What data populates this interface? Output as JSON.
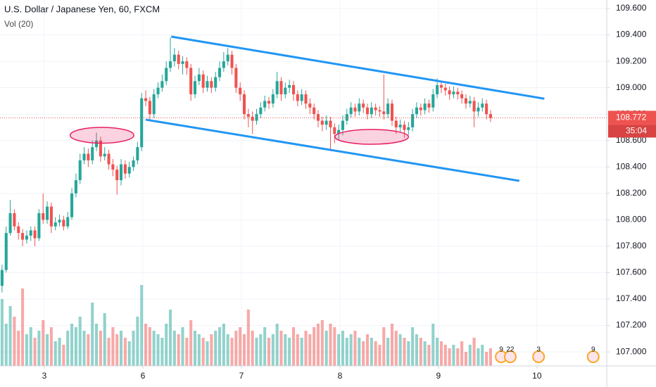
{
  "chart_data": {
    "type": "candlestick",
    "title": "U.S. Dollar / Japanese Yen, 60, FXCM",
    "subtitle": "Vol (20)",
    "x": [
      0,
      1,
      2,
      3,
      4,
      5,
      6,
      7,
      8,
      9,
      10,
      11,
      12,
      13,
      14,
      15,
      16,
      17,
      18,
      19,
      20,
      21,
      22,
      23,
      24,
      25,
      26,
      27,
      28,
      29,
      30,
      31,
      32,
      33,
      34,
      35,
      36,
      37,
      38,
      39,
      40,
      41,
      42,
      43,
      44,
      45,
      46,
      47,
      48,
      49,
      50,
      51,
      52,
      53,
      54,
      55,
      56,
      57,
      58,
      59,
      60,
      61,
      62,
      63,
      64,
      65,
      66,
      67,
      68,
      69,
      70,
      71,
      72,
      73,
      74,
      75,
      76,
      77,
      78,
      79,
      80,
      81,
      82,
      83,
      84,
      85,
      86,
      87,
      88,
      89,
      90,
      91,
      92,
      93,
      94,
      95,
      96,
      97,
      98,
      99,
      100,
      101,
      102,
      103,
      104,
      105,
      106,
      107,
      108,
      109,
      110,
      111,
      112,
      113,
      114,
      115,
      116,
      117,
      118,
      119
    ],
    "open": [
      107.5,
      107.62,
      107.9,
      108.05,
      107.95,
      107.9,
      107.85,
      107.88,
      107.92,
      107.86,
      108.05,
      108.0,
      108.1,
      107.95,
      107.98,
      108.0,
      107.95,
      108.02,
      108.2,
      108.3,
      108.45,
      108.5,
      108.45,
      108.55,
      108.6,
      108.48,
      108.5,
      108.42,
      108.38,
      108.3,
      108.42,
      108.35,
      108.4,
      108.45,
      108.55,
      108.92,
      108.9,
      108.8,
      108.95,
      109.0,
      109.05,
      109.15,
      109.2,
      109.25,
      109.18,
      109.2,
      109.15,
      108.95,
      109.05,
      109.1,
      109.0,
      109.05,
      109.0,
      109.08,
      109.15,
      109.2,
      109.25,
      109.15,
      109.0,
      108.95,
      108.8,
      108.78,
      108.75,
      108.8,
      108.85,
      108.9,
      108.88,
      108.95,
      109.05,
      108.95,
      109.0,
      109.02,
      108.95,
      108.9,
      108.95,
      108.88,
      108.85,
      108.8,
      108.75,
      108.72,
      108.75,
      108.7,
      108.65,
      108.68,
      108.75,
      108.8,
      108.85,
      108.82,
      108.88,
      108.85,
      108.8,
      108.85,
      108.83,
      108.82,
      108.8,
      108.88,
      108.75,
      108.7,
      108.72,
      108.68,
      108.7,
      108.8,
      108.85,
      108.83,
      108.88,
      108.85,
      108.95,
      109.02,
      109.0,
      108.98,
      108.95,
      108.97,
      108.95,
      108.92,
      108.88,
      108.9,
      108.82,
      108.85,
      108.88,
      108.8
    ],
    "high": [
      107.66,
      107.95,
      108.15,
      108.08,
      107.98,
      107.93,
      107.92,
      107.95,
      107.95,
      108.08,
      108.2,
      108.14,
      108.13,
      108.02,
      108.04,
      108.03,
      108.06,
      108.24,
      108.35,
      108.5,
      108.55,
      108.54,
      108.6,
      108.66,
      108.63,
      108.55,
      108.53,
      108.46,
      108.41,
      108.46,
      108.45,
      108.44,
      108.48,
      108.59,
      108.96,
      108.98,
      108.93,
      108.99,
      109.04,
      109.1,
      109.2,
      109.38,
      109.3,
      109.28,
      109.24,
      109.23,
      109.18,
      109.09,
      109.15,
      109.13,
      109.09,
      109.08,
      109.12,
      109.2,
      109.27,
      109.3,
      109.28,
      109.18,
      109.04,
      108.98,
      108.84,
      108.82,
      108.84,
      108.89,
      108.94,
      108.93,
      108.99,
      109.12,
      109.08,
      109.04,
      109.06,
      109.05,
      108.98,
      108.99,
      108.98,
      108.92,
      108.88,
      108.83,
      108.78,
      108.79,
      108.78,
      108.73,
      108.72,
      108.79,
      108.84,
      108.89,
      108.88,
      108.92,
      108.91,
      108.88,
      108.89,
      108.88,
      108.86,
      109.1,
      108.92,
      108.91,
      108.78,
      108.76,
      108.75,
      108.74,
      108.84,
      108.89,
      108.88,
      108.92,
      108.91,
      108.99,
      109.07,
      109.05,
      109.03,
      109.01,
      109.01,
      109.0,
      108.98,
      108.95,
      108.94,
      108.93,
      108.89,
      108.92,
      108.91,
      108.83
    ],
    "low": [
      107.45,
      107.6,
      107.88,
      107.92,
      107.85,
      107.8,
      107.82,
      107.84,
      107.8,
      107.84,
      107.97,
      107.97,
      107.9,
      107.92,
      107.95,
      107.92,
      107.93,
      108.0,
      108.17,
      108.27,
      108.42,
      108.4,
      108.42,
      108.52,
      108.44,
      108.45,
      108.38,
      108.33,
      108.19,
      108.26,
      108.31,
      108.32,
      108.37,
      108.42,
      108.52,
      108.86,
      108.76,
      108.77,
      108.92,
      108.97,
      109.02,
      109.12,
      109.16,
      109.14,
      109.1,
      109.1,
      108.9,
      108.92,
      109.02,
      108.96,
      108.97,
      108.96,
      108.97,
      109.05,
      109.12,
      109.17,
      109.1,
      108.96,
      108.9,
      108.76,
      108.7,
      108.65,
      108.72,
      108.77,
      108.82,
      108.84,
      108.85,
      108.92,
      108.9,
      108.92,
      108.96,
      108.9,
      108.86,
      108.87,
      108.84,
      108.8,
      108.76,
      108.7,
      108.67,
      108.68,
      108.52,
      108.58,
      108.61,
      108.64,
      108.72,
      108.77,
      108.78,
      108.79,
      108.81,
      108.76,
      108.77,
      108.79,
      108.78,
      108.76,
      108.77,
      108.71,
      108.65,
      108.66,
      108.62,
      108.64,
      108.67,
      108.77,
      108.79,
      108.8,
      108.81,
      108.82,
      108.92,
      108.96,
      108.94,
      108.91,
      108.92,
      108.91,
      108.88,
      108.84,
      108.85,
      108.7,
      108.78,
      108.82,
      108.76,
      108.74
    ],
    "close": [
      107.62,
      107.9,
      108.05,
      107.95,
      107.9,
      107.85,
      107.88,
      107.92,
      107.86,
      108.05,
      108.0,
      108.1,
      107.95,
      107.98,
      108.0,
      107.95,
      108.02,
      108.2,
      108.3,
      108.45,
      108.5,
      108.45,
      108.55,
      108.6,
      108.48,
      108.5,
      108.42,
      108.38,
      108.3,
      108.42,
      108.35,
      108.4,
      108.45,
      108.55,
      108.92,
      108.9,
      108.8,
      108.95,
      109.0,
      109.05,
      109.15,
      109.2,
      109.25,
      109.18,
      109.2,
      109.15,
      108.95,
      109.05,
      109.1,
      109.0,
      109.05,
      109.0,
      109.08,
      109.15,
      109.2,
      109.25,
      109.15,
      109.0,
      108.95,
      108.8,
      108.78,
      108.75,
      108.8,
      108.85,
      108.9,
      108.88,
      108.95,
      109.05,
      108.95,
      109.0,
      109.02,
      108.95,
      108.9,
      108.95,
      108.88,
      108.85,
      108.8,
      108.75,
      108.72,
      108.75,
      108.7,
      108.65,
      108.68,
      108.75,
      108.8,
      108.85,
      108.82,
      108.88,
      108.85,
      108.8,
      108.85,
      108.83,
      108.82,
      108.8,
      108.88,
      108.75,
      108.7,
      108.72,
      108.68,
      108.7,
      108.8,
      108.85,
      108.83,
      108.88,
      108.85,
      108.95,
      109.02,
      109.0,
      108.98,
      108.95,
      108.97,
      108.95,
      108.92,
      108.88,
      108.9,
      108.82,
      108.85,
      108.88,
      108.8,
      108.77
    ],
    "volume": [
      95,
      60,
      85,
      70,
      50,
      110,
      45,
      55,
      40,
      50,
      65,
      45,
      55,
      35,
      40,
      30,
      50,
      60,
      55,
      70,
      50,
      45,
      90,
      60,
      50,
      75,
      40,
      55,
      45,
      50,
      40,
      35,
      50,
      70,
      115,
      60,
      55,
      50,
      45,
      40,
      60,
      80,
      50,
      45,
      55,
      40,
      65,
      50,
      45,
      40,
      35,
      45,
      50,
      55,
      60,
      45,
      40,
      50,
      55,
      45,
      80,
      50,
      40,
      45,
      55,
      40,
      45,
      60,
      50,
      45,
      40,
      55,
      45,
      40,
      50,
      45,
      55,
      60,
      65,
      50,
      60,
      55,
      45,
      50,
      40,
      45,
      50,
      40,
      35,
      45,
      40,
      35,
      30,
      55,
      40,
      60,
      50,
      45,
      40,
      35,
      55,
      45,
      40,
      35,
      30,
      60,
      40,
      35,
      30,
      25,
      30,
      25,
      35,
      20,
      30,
      40,
      25,
      30,
      20,
      25
    ],
    "volume_lim": [
      0,
      520
    ],
    "up_color": "#26a69a",
    "down_color": "#ef5350",
    "xlim": [
      -0.5,
      147.3
    ],
    "xticks": [
      {
        "value": 10.3,
        "label": "3"
      },
      {
        "value": 34.3,
        "label": "6"
      },
      {
        "value": 58.3,
        "label": "7"
      },
      {
        "value": 82.3,
        "label": "8"
      },
      {
        "value": 106.3,
        "label": "9"
      },
      {
        "value": 130.3,
        "label": "10"
      }
    ],
    "ylim": [
      106.894,
      109.664
    ],
    "yticks": [
      {
        "value": 107.0,
        "label": "107.000"
      },
      {
        "value": 107.2,
        "label": "107.200"
      },
      {
        "value": 107.4,
        "label": "107.400"
      },
      {
        "value": 107.6,
        "label": "107.600"
      },
      {
        "value": 107.8,
        "label": "107.800"
      },
      {
        "value": 108.0,
        "label": "108.000"
      },
      {
        "value": 108.2,
        "label": "108.200"
      },
      {
        "value": 108.4,
        "label": "108.400"
      },
      {
        "value": 108.6,
        "label": "108.600"
      },
      {
        "value": 108.8,
        "label": "108.800"
      },
      {
        "value": 109.0,
        "label": "109.000"
      },
      {
        "value": 109.2,
        "label": "109.200"
      },
      {
        "value": 109.4,
        "label": "109.400"
      },
      {
        "value": 109.6,
        "label": "109.600"
      }
    ],
    "grid": true,
    "last_price": 108.772,
    "countdown": "35:04",
    "trend_lines": [
      {
        "x": [
          41.2,
          132.1
        ],
        "y": [
          109.387,
          108.917
        ],
        "color": "#2196f3"
      },
      {
        "x": [
          35.0,
          126.0
        ],
        "y": [
          108.758,
          108.295
        ],
        "color": "#2196f3"
      }
    ],
    "ellipses": [
      {
        "x": [
          16.6,
          32.1
        ],
        "y": [
          108.58,
          108.7
        ],
        "color": "#e91e63"
      },
      {
        "x": [
          81.1,
          99.0
        ],
        "y": [
          108.572,
          108.684
        ],
        "color": "#e91e63"
      }
    ],
    "events": [
      {
        "x": 121.6,
        "label": "9"
      },
      {
        "x": 123.8,
        "label": "22"
      },
      {
        "x": 130.7,
        "label": "3"
      },
      {
        "x": 144.0,
        "label": "9"
      }
    ]
  }
}
